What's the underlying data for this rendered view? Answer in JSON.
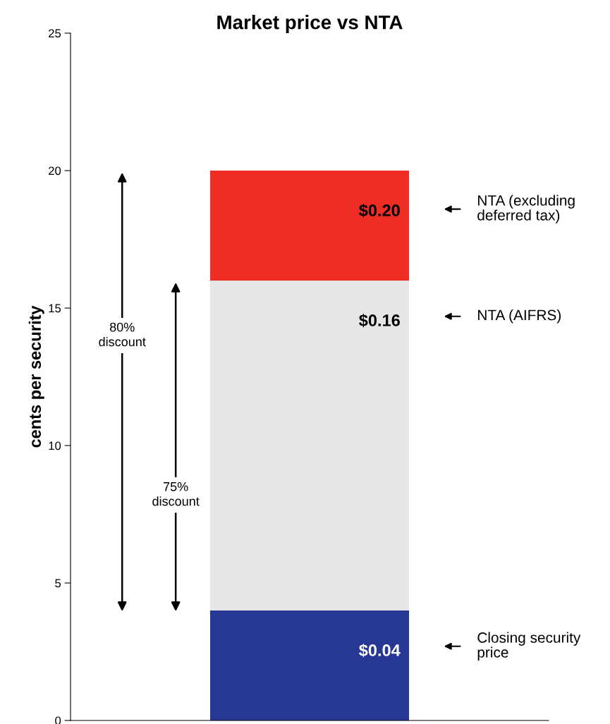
{
  "chart_data": {
    "type": "bar",
    "stacked": true,
    "title": "Market price vs NTA",
    "ylabel": "cents per security",
    "categories": [
      null
    ],
    "series": [
      {
        "color": "#263894",
        "values": [
          4
        ]
      },
      {
        "color": "#e6e6e6",
        "values": [
          12
        ]
      },
      {
        "color": "#ee2e24",
        "values": [
          4
        ]
      }
    ],
    "ylim": [
      0,
      25
    ],
    "yticks": [
      0,
      5,
      10,
      15,
      20,
      25
    ],
    "grid": false,
    "legend": false,
    "annotations": [
      "80%\ndiscount",
      "75%\ndiscount",
      "NTA (excluding\ndeferred tax)",
      "NTA (AIFRS)",
      "Closing security\nprice",
      {
        "text": "$0.04",
        "y": 4
      },
      {
        "text": "$0.16",
        "y": 16
      },
      {
        "text": "$0.20",
        "y": 20
      }
    ]
  }
}
